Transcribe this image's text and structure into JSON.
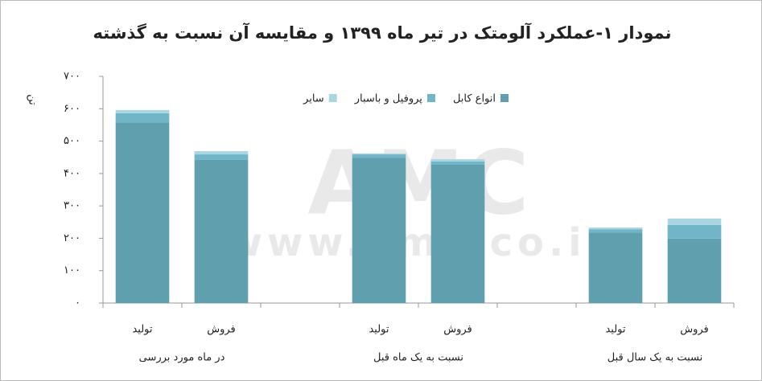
{
  "chart_data": {
    "type": "stacked-bar",
    "title": "نمودار ۱-عملکرد آلومتک در تیر ماه ۱۳۹۹ و مقایسه آن نسبت به گذشته",
    "y_label": "تن",
    "watermark": [
      "AMC",
      "www.amc-co.ir"
    ],
    "categories": [
      "تولید",
      "فروش",
      null,
      "تولید",
      "فروش",
      null,
      "تولید",
      "فروش"
    ],
    "group_labels": [
      "در ماه مورد بررسی",
      "نسبت به یک ماه قبل",
      "نسبت به یک سال قبل"
    ],
    "series": [
      {
        "name": "انواع کابل",
        "color": "#5f9fae",
        "values": [
          558,
          442,
          null,
          449,
          427,
          null,
          218,
          199
        ]
      },
      {
        "name": "پروفیل و باسبار",
        "color": "#70b5c8",
        "values": [
          28,
          17,
          null,
          10,
          10,
          null,
          10,
          42
        ]
      },
      {
        "name": "سایر",
        "color": "#a9d5e0",
        "values": [
          10,
          10,
          null,
          3,
          7,
          null,
          5,
          20
        ]
      }
    ],
    "ylim": [
      0,
      700
    ],
    "yticks": [
      {
        "value": 0,
        "label": "۰"
      },
      {
        "value": 100,
        "label": "۱۰۰"
      },
      {
        "value": 200,
        "label": "۲۰۰"
      },
      {
        "value": 300,
        "label": "۳۰۰"
      },
      {
        "value": 400,
        "label": "۴۰۰"
      },
      {
        "value": 500,
        "label": "۵۰۰"
      },
      {
        "value": 600,
        "label": "۶۰۰"
      },
      {
        "value": 700,
        "label": "۷۰۰"
      }
    ],
    "grid": false,
    "legend": "top"
  }
}
